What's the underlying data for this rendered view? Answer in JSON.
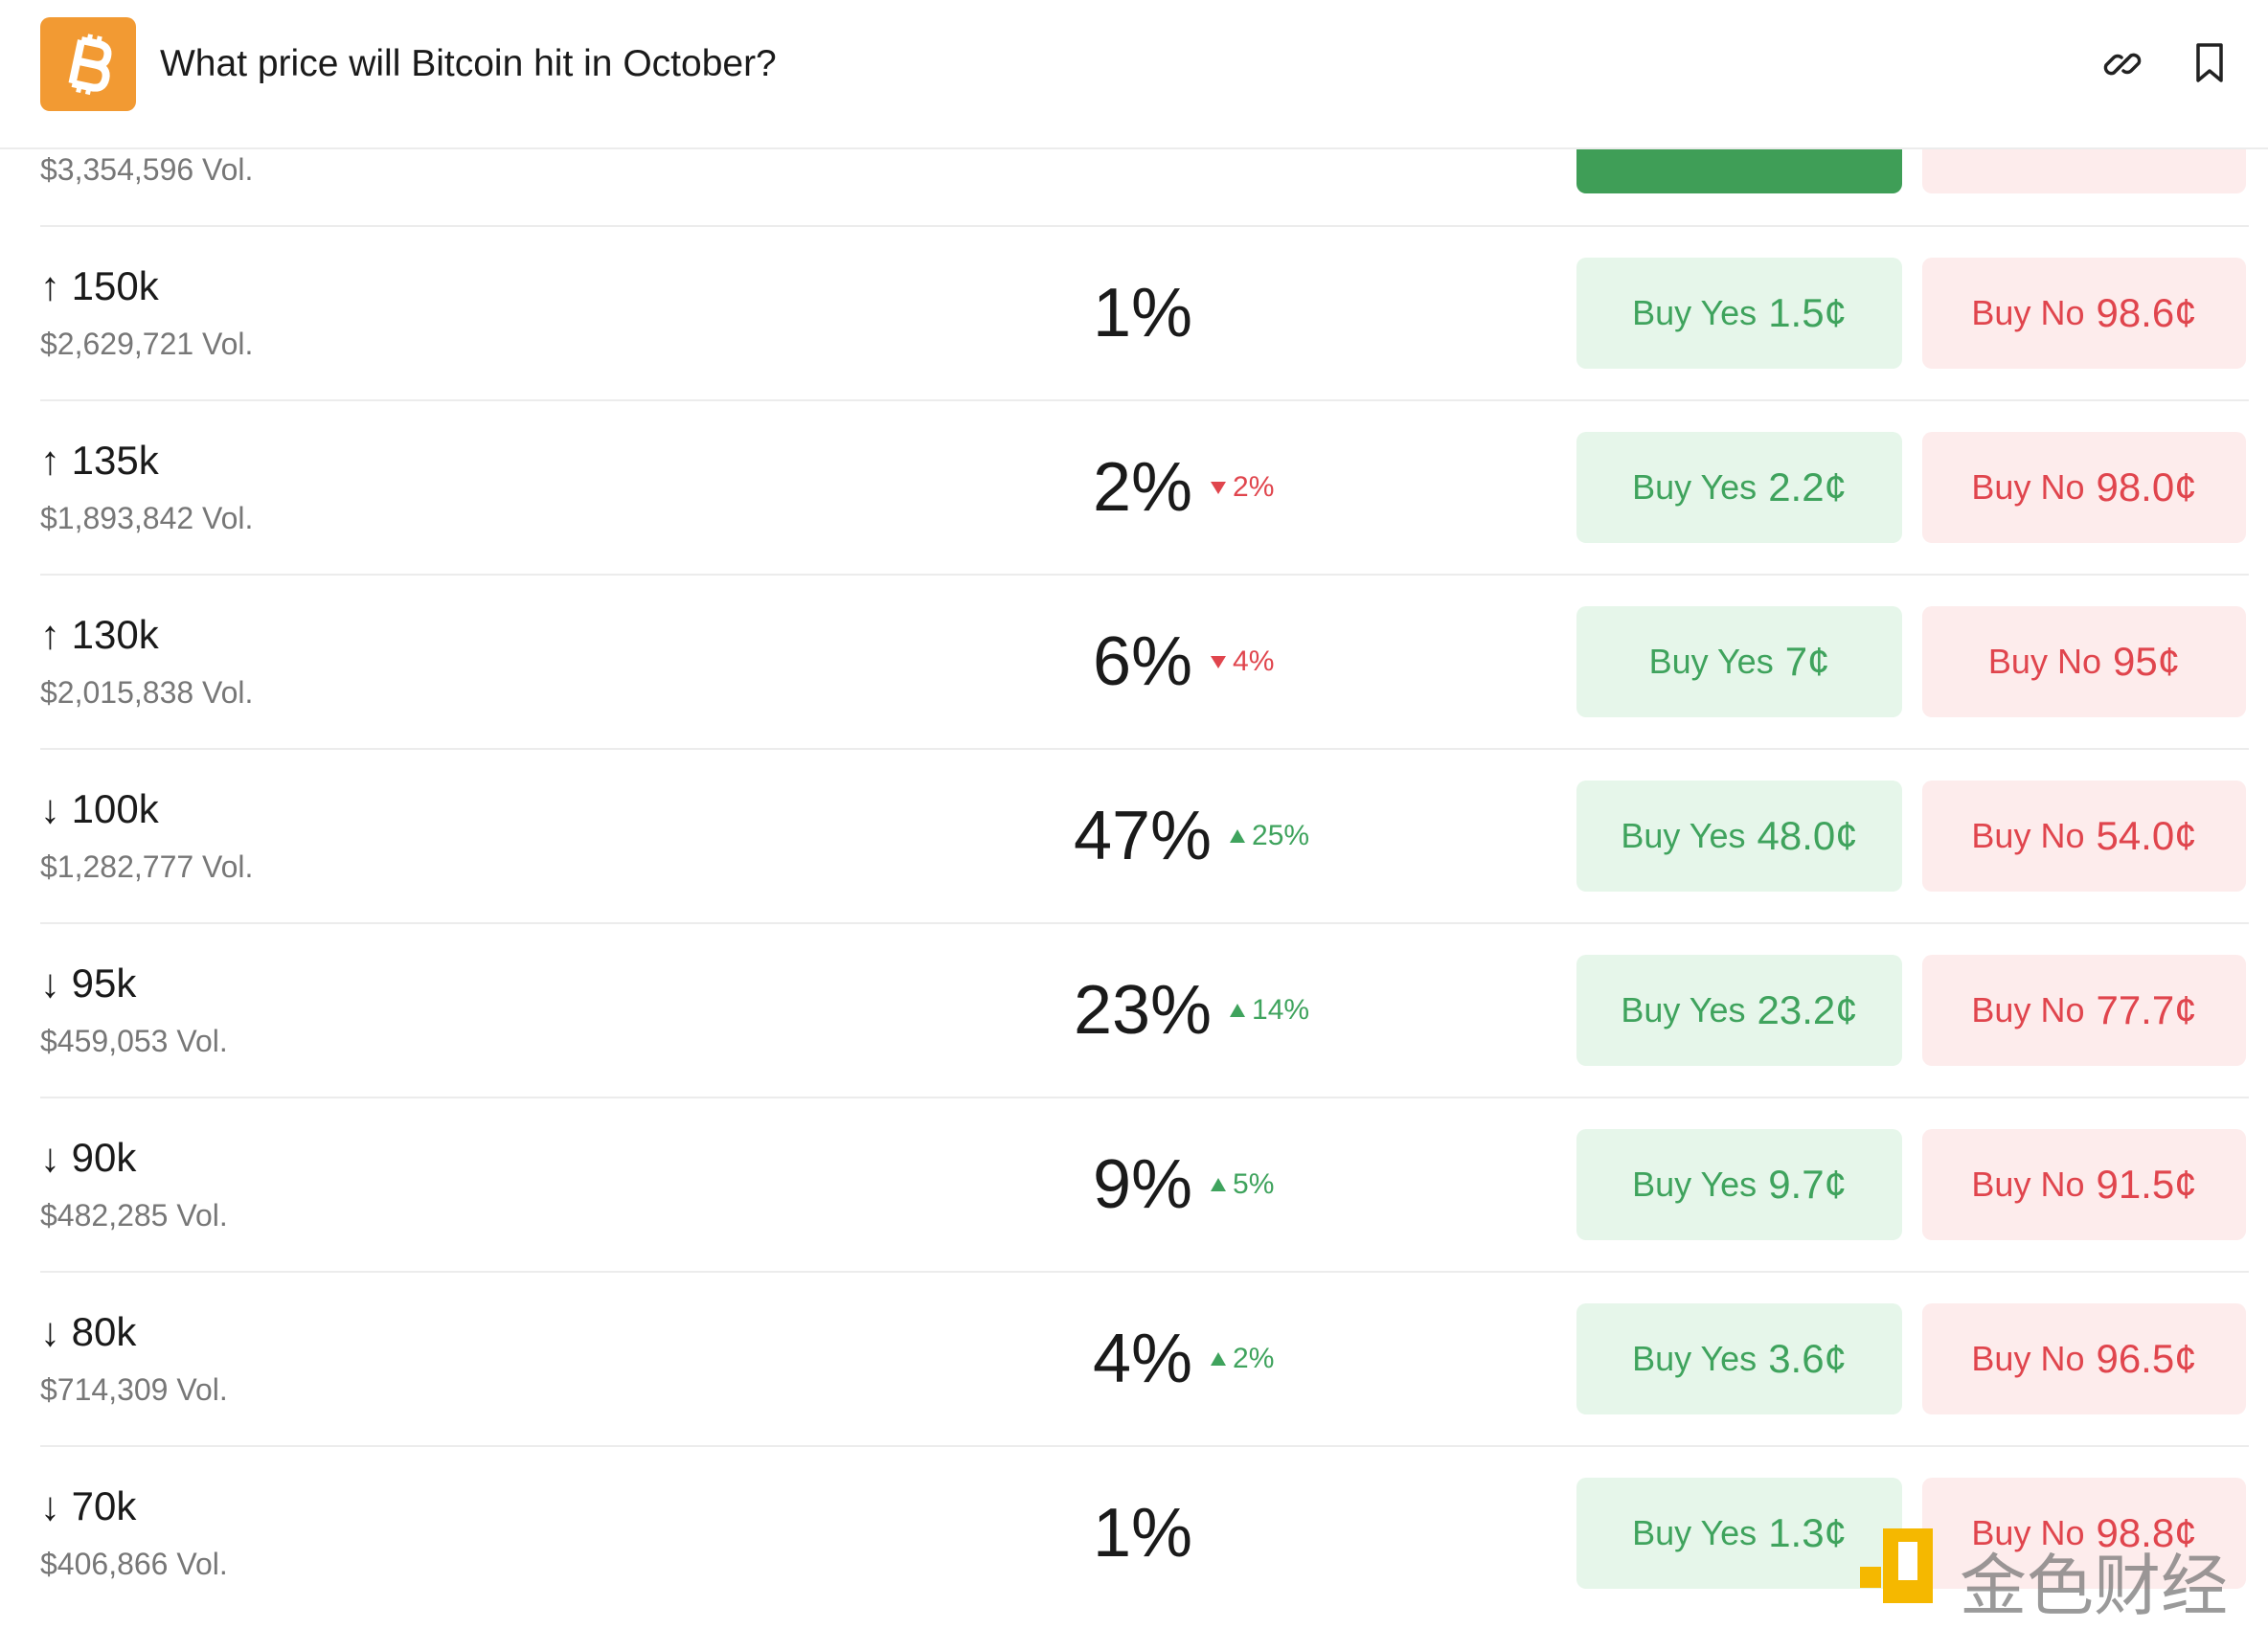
{
  "header": {
    "title": "What price will Bitcoin hit in October?"
  },
  "partial_row": {
    "volume": "$3,354,596 Vol."
  },
  "rows": [
    {
      "label": "↑ 150k",
      "volume": "$2,629,721 Vol.",
      "percent": "1%",
      "change": null,
      "direction": null,
      "yes_text": "Buy Yes",
      "yes_price": "1.5¢",
      "no_text": "Buy No",
      "no_price": "98.6¢"
    },
    {
      "label": "↑ 135k",
      "volume": "$1,893,842 Vol.",
      "percent": "2%",
      "change": "2%",
      "direction": "down",
      "yes_text": "Buy Yes",
      "yes_price": "2.2¢",
      "no_text": "Buy No",
      "no_price": "98.0¢"
    },
    {
      "label": "↑ 130k",
      "volume": "$2,015,838 Vol.",
      "percent": "6%",
      "change": "4%",
      "direction": "down",
      "yes_text": "Buy Yes",
      "yes_price": "7¢",
      "no_text": "Buy No",
      "no_price": "95¢"
    },
    {
      "label": "↓ 100k",
      "volume": "$1,282,777 Vol.",
      "percent": "47%",
      "change": "25%",
      "direction": "up",
      "yes_text": "Buy Yes",
      "yes_price": "48.0¢",
      "no_text": "Buy No",
      "no_price": "54.0¢"
    },
    {
      "label": "↓ 95k",
      "volume": "$459,053 Vol.",
      "percent": "23%",
      "change": "14%",
      "direction": "up",
      "yes_text": "Buy Yes",
      "yes_price": "23.2¢",
      "no_text": "Buy No",
      "no_price": "77.7¢"
    },
    {
      "label": "↓ 90k",
      "volume": "$482,285 Vol.",
      "percent": "9%",
      "change": "5%",
      "direction": "up",
      "yes_text": "Buy Yes",
      "yes_price": "9.7¢",
      "no_text": "Buy No",
      "no_price": "91.5¢"
    },
    {
      "label": "↓ 80k",
      "volume": "$714,309 Vol.",
      "percent": "4%",
      "change": "2%",
      "direction": "up",
      "yes_text": "Buy Yes",
      "yes_price": "3.6¢",
      "no_text": "Buy No",
      "no_price": "96.5¢"
    },
    {
      "label": "↓ 70k",
      "volume": "$406,866 Vol.",
      "percent": "1%",
      "change": null,
      "direction": null,
      "yes_text": "Buy Yes",
      "yes_price": "1.3¢",
      "no_text": "Buy No",
      "no_price": "98.8¢"
    }
  ],
  "watermark": "金色财经"
}
